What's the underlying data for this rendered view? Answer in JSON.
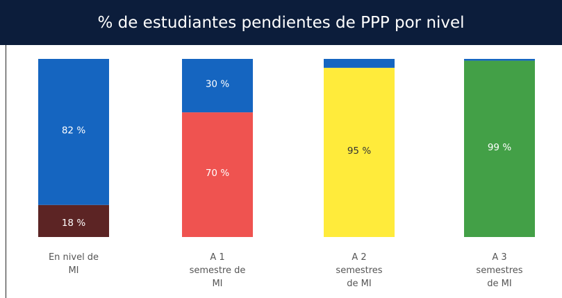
{
  "chart_data": {
    "type": "stacked_bar",
    "title": "% de estudiantes pendientes de PPP por nivel",
    "categories": [
      "En nivel de\nMI",
      "A 1\nsemestre de\nMI",
      "A 2\nsemestres\nde MI",
      "A 3\nsemestres\nde MI"
    ],
    "ylim": [
      0,
      100
    ],
    "series": [
      {
        "colors": [
          "#5c2424",
          "#ef5350",
          "#ffeb3b",
          "#43a047"
        ],
        "values": [
          18,
          70,
          95,
          99
        ],
        "value_labels": [
          "18 %",
          "70 %",
          "95 %",
          "99 %"
        ]
      },
      {
        "color": "#1565c0",
        "values": [
          82,
          30,
          5,
          1
        ],
        "value_labels": [
          "82 %",
          "30 %",
          null,
          null
        ]
      }
    ]
  }
}
